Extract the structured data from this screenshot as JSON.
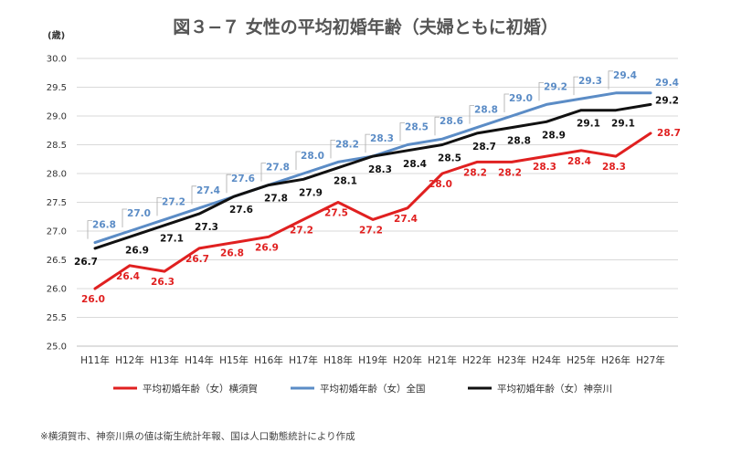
{
  "chart_data": {
    "type": "line",
    "title": "図３−７ 女性の平均初婚年齢（夫婦ともに初婚）",
    "ylabel": "(歳)",
    "xlabel": "",
    "ylim": [
      25.0,
      30.0
    ],
    "yticks": [
      "25.0",
      "25.5",
      "26.0",
      "26.5",
      "27.0",
      "27.5",
      "28.0",
      "28.5",
      "29.0",
      "29.5",
      "30.0"
    ],
    "categories": [
      "H11年",
      "H12年",
      "H13年",
      "H14年",
      "H15年",
      "H16年",
      "H17年",
      "H18年",
      "H19年",
      "H20年",
      "H21年",
      "H22年",
      "H23年",
      "H24年",
      "H25年",
      "H26年",
      "H27年"
    ],
    "grid": true,
    "legend_position": "bottom",
    "series": [
      {
        "name": "平均初婚年齢（女）横須賀",
        "color": "#e02020",
        "values": [
          26.0,
          26.4,
          26.3,
          26.7,
          26.8,
          26.9,
          27.2,
          27.5,
          27.2,
          27.4,
          28.0,
          28.2,
          28.2,
          28.3,
          28.4,
          28.3,
          28.7
        ]
      },
      {
        "name": "平均初婚年齢（女）全国",
        "color": "#5b8cc6",
        "values": [
          26.8,
          27.0,
          27.2,
          27.4,
          27.6,
          27.8,
          28.0,
          28.2,
          28.3,
          28.5,
          28.6,
          28.8,
          29.0,
          29.2,
          29.3,
          29.4,
          29.4
        ]
      },
      {
        "name": "平均初婚年齢（女）神奈川",
        "color": "#111111",
        "values": [
          26.7,
          26.9,
          27.1,
          27.3,
          27.6,
          27.8,
          27.9,
          28.1,
          28.3,
          28.4,
          28.5,
          28.7,
          28.8,
          28.9,
          29.1,
          29.1,
          29.2
        ]
      }
    ],
    "footnote": "※横須賀市、神奈川県の値は衛生統計年報、国は人口動態統計により作成"
  }
}
